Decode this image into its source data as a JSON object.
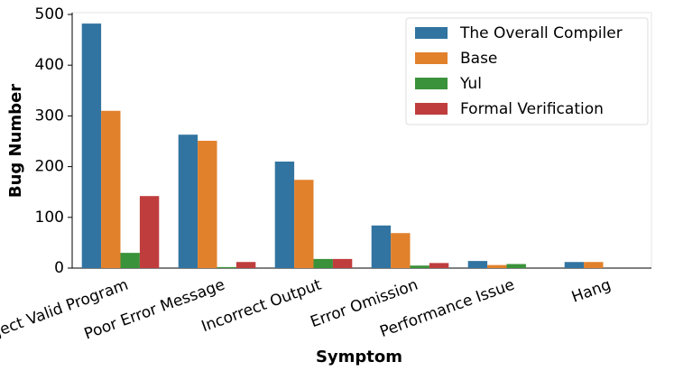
{
  "chart_data": {
    "type": "bar",
    "xlabel": "Symptom",
    "ylabel": "Bug Number",
    "categories": [
      "Reject Valid Program",
      "Poor Error Message",
      "Incorrect Output",
      "Error Omission",
      "Performance Issue",
      "Hang"
    ],
    "series": [
      {
        "name": "The Overall Compiler",
        "color": "#3274a1",
        "values": [
          482,
          263,
          210,
          84,
          14,
          12
        ]
      },
      {
        "name": "Base",
        "color": "#e1812c",
        "values": [
          310,
          251,
          174,
          69,
          6,
          12
        ]
      },
      {
        "name": "Yul",
        "color": "#3a923a",
        "values": [
          30,
          2,
          18,
          5,
          8,
          0
        ]
      },
      {
        "name": "Formal Verification",
        "color": "#c03d3e",
        "values": [
          142,
          12,
          18,
          10,
          0,
          0
        ]
      }
    ],
    "ylim": [
      0,
      500
    ],
    "yticks": [
      0,
      100,
      200,
      300,
      400,
      500
    ],
    "legend": "upper right"
  }
}
